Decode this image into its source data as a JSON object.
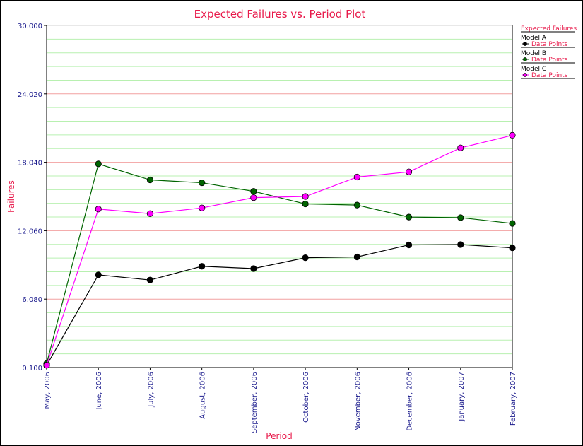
{
  "chart_data": {
    "type": "line",
    "title": "Expected Failures vs. Period Plot",
    "xlabel": "Period",
    "ylabel": "Failures",
    "categories": [
      "May, 2006",
      "June, 2006",
      "July, 2006",
      "August, 2006",
      "September, 2006",
      "October, 2006",
      "November, 2006",
      "December, 2006",
      "January, 2007",
      "February, 2007"
    ],
    "yticks": [
      "0.100",
      "6.080",
      "12.060",
      "18.040",
      "24.020",
      "30.000"
    ],
    "ylim": [
      0.1,
      30.0
    ],
    "grid": true,
    "legend_position": "right",
    "legend_title": "Expected Failures",
    "series": [
      {
        "name": "Model A",
        "marker_label": "Data Points",
        "color": "#000000",
        "values": [
          0.3,
          8.2,
          7.75,
          8.95,
          8.75,
          9.7,
          9.77,
          10.82,
          10.85,
          10.56
        ]
      },
      {
        "name": "Model B",
        "marker_label": "Data Points",
        "color": "#006400",
        "values": [
          0.45,
          17.9,
          16.5,
          16.25,
          15.5,
          14.4,
          14.3,
          13.25,
          13.2,
          12.7
        ]
      },
      {
        "name": "Model C",
        "marker_label": "Data Points",
        "color": "#ff00ff",
        "values": [
          0.3,
          13.95,
          13.55,
          14.05,
          14.95,
          15.05,
          16.75,
          17.2,
          19.3,
          20.4
        ]
      }
    ],
    "colors": {
      "major_grid": "#f2a0a0",
      "minor_grid": "#b8f0b0",
      "text_accent": "#e8194a",
      "tick_text": "#1a1a8c"
    }
  }
}
